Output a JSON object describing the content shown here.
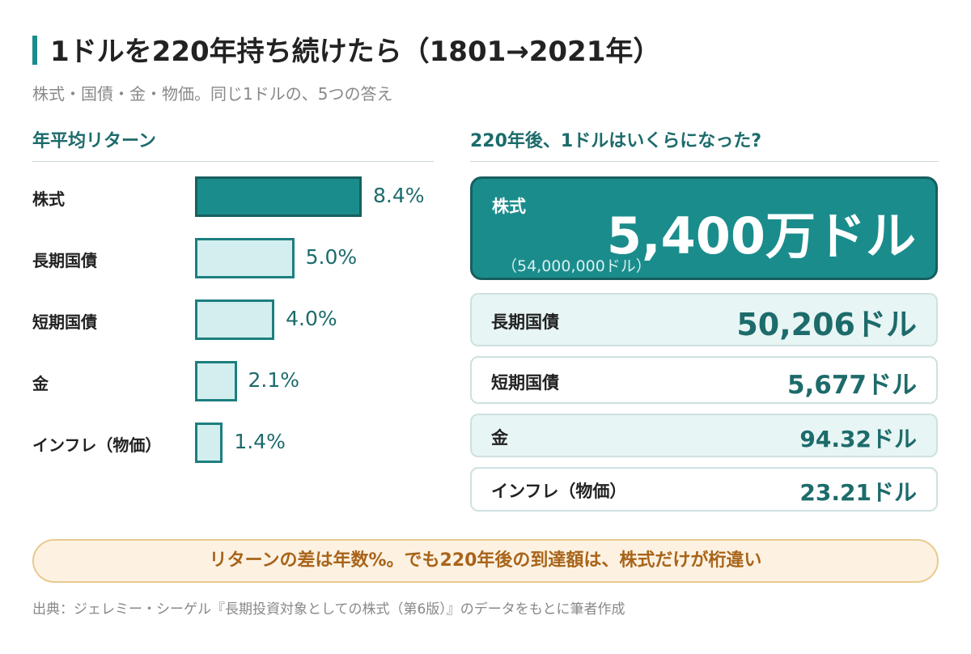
{
  "title": "1ドルを220年持ち続けたら（1801→2021年）",
  "subtitle": "株式・国債・金・物価。同じ1ドルの、5つの答え",
  "left_heading": "年平均リターン",
  "right_heading": "220年後、1ドルはいくらになった?",
  "chart_data": {
    "type": "bar",
    "title": "年平均リターン",
    "categories": [
      "株式",
      "長期国債",
      "短期国債",
      "金",
      "インフレ（物価）"
    ],
    "values": [
      8.4,
      5.0,
      4.0,
      2.1,
      1.4
    ],
    "value_labels": [
      "8.4%",
      "5.0%",
      "4.0%",
      "2.1%",
      "1.4%"
    ],
    "colors": {
      "highlight_fill": "#1b8c8c",
      "fill": "#d3eeee",
      "stroke": "#1d7f7f",
      "value_text": "#1d6b6b"
    }
  },
  "results": {
    "hero": {
      "label": "株式",
      "value": "5,400万ドル",
      "sub": "（54,000,000ドル）"
    },
    "items": [
      {
        "label": "長期国債",
        "value": "50,206ドル"
      },
      {
        "label": "短期国債",
        "value": "5,677ドル"
      },
      {
        "label": "金",
        "value": "94.32ドル"
      },
      {
        "label": "インフレ（物価）",
        "value": "23.21ドル"
      }
    ]
  },
  "note": "リターンの差は年数%。でも220年後の到達額は、株式だけが桁違い",
  "source": "出典：ジェレミー・シーゲル『長期投資対象としての株式（第6版）』のデータをもとに筆者作成",
  "colors": {
    "accent": "#1b8c8c",
    "accent_dark": "#1d6b6b",
    "note_bg": "#fdf2e2",
    "note_text": "#a8641a"
  }
}
